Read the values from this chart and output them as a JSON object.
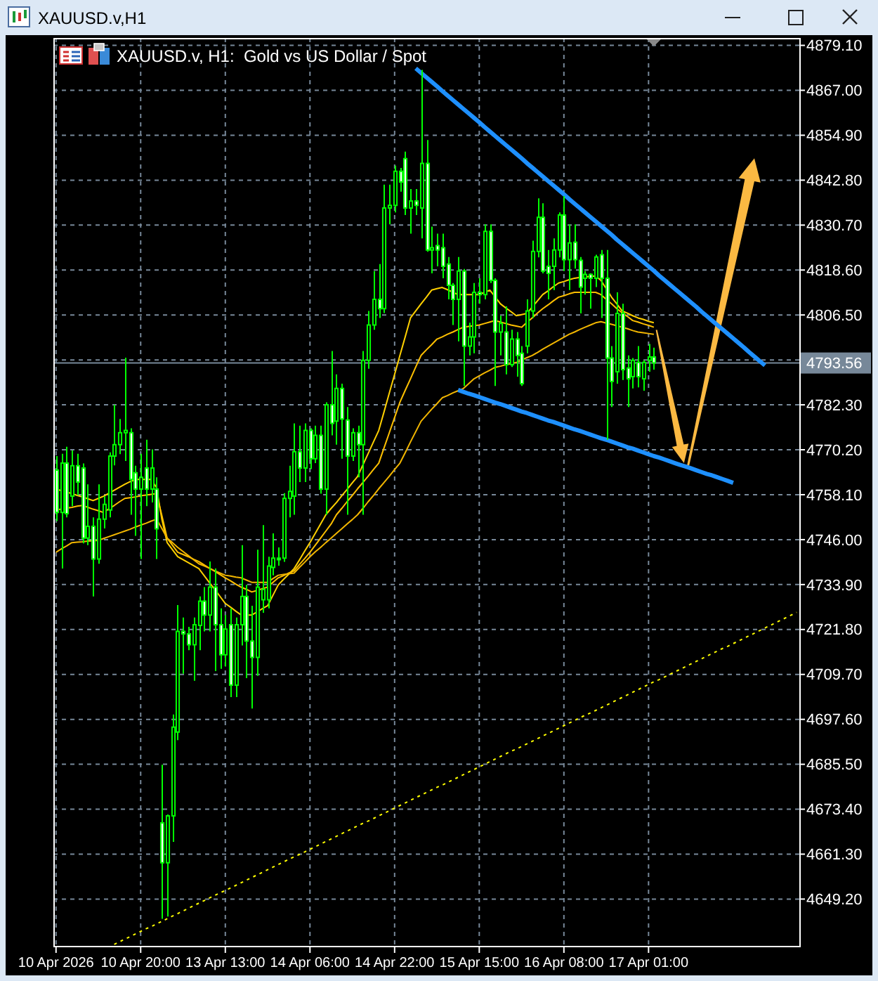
{
  "chart_data": {
    "type": "candlestick",
    "title": "XAUUSD.v,H1",
    "subtitle": "XAUUSD.v, H1:  Gold vs US Dollar / Spot",
    "color": "#00ff00",
    "categories": [
      "10 Apr 2026",
      null,
      null,
      null,
      null,
      null,
      null,
      null,
      null,
      null,
      null,
      null,
      null,
      null,
      null,
      null,
      "10 Apr 20:00",
      null,
      null,
      null,
      null,
      null,
      null,
      null,
      null,
      null,
      null,
      null,
      null,
      null,
      null,
      null,
      "13 Apr 13:00",
      null,
      null,
      null,
      null,
      null,
      null,
      null,
      null,
      null,
      null,
      null,
      null,
      null,
      null,
      null,
      "14 Apr 06:00",
      null,
      null,
      null,
      null,
      null,
      null,
      null,
      null,
      null,
      null,
      null,
      null,
      null,
      null,
      null,
      "14 Apr 22:00",
      null,
      null,
      null,
      null,
      null,
      null,
      null,
      null,
      null,
      null,
      null,
      null,
      null,
      null,
      null,
      "15 Apr 15:00",
      null,
      null,
      null,
      null,
      null,
      null,
      null,
      null,
      null,
      null,
      null,
      null,
      null,
      null,
      null,
      "16 Apr 08:00",
      null,
      null,
      null,
      null,
      null,
      null,
      null,
      null,
      null,
      null,
      null,
      null,
      null,
      null,
      null,
      "17 Apr 01:00",
      null,
      null,
      null,
      null,
      null,
      null,
      null,
      null,
      null,
      null,
      null,
      null,
      null,
      null,
      null,
      null,
      null,
      null,
      null,
      null,
      null,
      null,
      null,
      null,
      null,
      null,
      null,
      null
    ],
    "ohlc": [
      [
        4764.7,
        4768.5,
        4751.0,
        4753.3
      ],
      [
        4753.3,
        4769.1,
        4738.2,
        4766.6
      ],
      [
        4766.6,
        4771.0,
        4752.0,
        4753.0
      ],
      [
        4757.7,
        4770.0,
        4755.0,
        4765.9
      ],
      [
        4765.9,
        4769.1,
        4758.0,
        4761.5
      ],
      [
        4765.3,
        4766.5,
        4745.0,
        4746.4
      ],
      [
        4746.4,
        4760.9,
        4744.5,
        4749.6
      ],
      [
        4749.6,
        4752.0,
        4730.7,
        4740.8
      ],
      [
        4740.8,
        4760.9,
        4739.5,
        4751.5
      ],
      [
        4751.5,
        4757.7,
        4749.0,
        4755.5
      ],
      [
        4754.0,
        4769.5,
        4752.0,
        4768.5
      ],
      [
        4768.5,
        4782.3,
        4766.0,
        4771.6
      ],
      [
        4771.6,
        4778.5,
        4769.0,
        4774.8
      ],
      [
        4774.8,
        4795.0,
        4767.2,
        4775.4
      ],
      [
        4774.8,
        4776.0,
        4752.7,
        4762.2
      ],
      [
        4764.0,
        4765.9,
        4747.0,
        4759.6
      ],
      [
        4759.6,
        4769.1,
        4740.8,
        4762.8
      ],
      [
        4765.3,
        4772.9,
        4755.0,
        4759.6
      ],
      [
        4759.6,
        4770.3,
        4756.0,
        4765.3
      ],
      [
        4759.6,
        4762.8,
        4740.8,
        4748.9
      ],
      [
        4669.7,
        4685.4,
        4643.9,
        4659.0
      ],
      [
        4659.0,
        4672.0,
        4644.5,
        4671.6
      ],
      [
        4671.6,
        4698.9,
        4664.6,
        4695.5
      ],
      [
        4694.2,
        4728.4,
        4692.0,
        4721.3
      ],
      [
        4721.3,
        4725.0,
        4709.9,
        4720.6
      ],
      [
        4720.6,
        4722.5,
        4716.2,
        4717.7
      ],
      [
        4717.7,
        4725.0,
        4708.0,
        4723.1
      ],
      [
        4722.9,
        4730.7,
        4716.2,
        4729.4
      ],
      [
        4729.4,
        4733.2,
        4721.3,
        4725.7
      ],
      [
        4725.7,
        4740.1,
        4721.3,
        4733.2
      ],
      [
        4733.2,
        4738.2,
        4710.6,
        4723.1
      ],
      [
        4723.1,
        4727.5,
        4711.2,
        4715.0
      ],
      [
        4715.0,
        4725.7,
        4711.8,
        4721.9
      ],
      [
        4723.1,
        4727.5,
        4703.6,
        4706.8
      ],
      [
        4706.8,
        4725.0,
        4703.6,
        4723.1
      ],
      [
        4723.1,
        4744.5,
        4717.5,
        4730.7
      ],
      [
        4730.7,
        4733.8,
        4708.7,
        4718.7
      ],
      [
        4718.7,
        4728.2,
        4700.5,
        4714.3
      ],
      [
        4714.3,
        4743.3,
        4709.3,
        4733.2
      ],
      [
        4729.8,
        4749.9,
        4726.3,
        4732.6
      ],
      [
        4729.8,
        4741.4,
        4727.5,
        4738.9
      ],
      [
        4738.5,
        4747.7,
        4736.4,
        4741.0
      ],
      [
        4741.0,
        4743.9,
        4739.0,
        4740.6
      ],
      [
        4741.0,
        4758.5,
        4740.0,
        4757.1
      ],
      [
        4757.1,
        4765.9,
        4752.0,
        4759.0
      ],
      [
        4757.7,
        4777.3,
        4752.7,
        4769.7
      ],
      [
        4769.7,
        4776.7,
        4761.5,
        4765.3
      ],
      [
        4765.3,
        4777.3,
        4761.5,
        4775.4
      ],
      [
        4775.4,
        4776.0,
        4765.0,
        4767.8
      ],
      [
        4767.8,
        4776.7,
        4766.6,
        4774.1
      ],
      [
        4774.1,
        4776.7,
        4758.4,
        4759.6
      ],
      [
        4759.6,
        4783.0,
        4752.7,
        4782.3
      ],
      [
        4782.3,
        4796.8,
        4774.1,
        4777.3
      ],
      [
        4777.9,
        4790.5,
        4771.6,
        4786.7
      ],
      [
        4786.7,
        4788.0,
        4767.8,
        4778.5
      ],
      [
        4778.2,
        4781.7,
        4752.7,
        4768.5
      ],
      [
        4768.5,
        4776.0,
        4767.2,
        4774.8
      ],
      [
        4774.8,
        4776.7,
        4762.8,
        4771.6
      ],
      [
        4771.6,
        4796.8,
        4752.7,
        4794.3
      ],
      [
        4794.3,
        4807.6,
        4792.0,
        4803.8
      ],
      [
        4803.8,
        4818.3,
        4802.5,
        4810.7
      ],
      [
        4810.7,
        4820.2,
        4805.7,
        4808.2
      ],
      [
        4808.2,
        4841.6,
        4807.0,
        4835.3
      ],
      [
        4835.3,
        4841.6,
        4830.9,
        4836.0
      ],
      [
        4836.0,
        4846.7,
        4834.1,
        4845.2
      ],
      [
        4845.2,
        4846.1,
        4839.7,
        4842.3
      ],
      [
        4848.6,
        4850.5,
        4833.4,
        4835.3
      ],
      [
        4835.3,
        4840.4,
        4828.4,
        4837.2
      ],
      [
        4837.2,
        4840.4,
        4833.4,
        4836.0
      ],
      [
        4835.3,
        4872.5,
        4827.1,
        4847.3
      ],
      [
        4847.3,
        4853.6,
        4823.5,
        4824.0
      ],
      [
        4824.0,
        4830.3,
        4817.7,
        4824.6
      ],
      [
        4825.2,
        4828.4,
        4819.6,
        4824.0
      ],
      [
        4824.6,
        4828.4,
        4816.4,
        4819.6
      ],
      [
        4820.2,
        4822.1,
        4810.7,
        4814.5
      ],
      [
        4814.5,
        4815.1,
        4803.8,
        4810.7
      ],
      [
        4810.7,
        4822.1,
        4799.4,
        4818.3
      ],
      [
        4818.3,
        4818.9,
        4787.4,
        4798.1
      ],
      [
        4798.1,
        4804.4,
        4795.6,
        4800.6
      ],
      [
        4800.6,
        4815.1,
        4796.2,
        4812.6
      ],
      [
        4812.6,
        4816.4,
        4809.5,
        4812.0
      ],
      [
        4812.0,
        4830.9,
        4810.7,
        4829.0
      ],
      [
        4829.0,
        4830.9,
        4815.1,
        4815.8
      ],
      [
        4815.8,
        4816.4,
        4787.4,
        4801.9
      ],
      [
        4801.9,
        4806.3,
        4795.6,
        4804.2
      ],
      [
        4801.9,
        4808.8,
        4790.5,
        4793.1
      ],
      [
        4793.1,
        4802.5,
        4792.5,
        4800.0
      ],
      [
        4800.0,
        4801.9,
        4789.9,
        4795.6
      ],
      [
        4796.2,
        4798.1,
        4787.4,
        4788.0
      ],
      [
        4798.1,
        4810.7,
        4796.2,
        4807.6
      ],
      [
        4807.6,
        4826.5,
        4805.7,
        4823.6
      ],
      [
        4823.6,
        4837.9,
        4822.0,
        4832.8
      ],
      [
        4832.8,
        4836.6,
        4817.7,
        4818.3
      ],
      [
        4819.6,
        4824.0,
        4810.7,
        4817.7
      ],
      [
        4819.6,
        4827.1,
        4813.2,
        4824.0
      ],
      [
        4824.0,
        4834.1,
        4822.0,
        4833.4
      ],
      [
        4833.4,
        4838.5,
        4818.3,
        4821.4
      ],
      [
        4821.4,
        4830.9,
        4813.2,
        4825.9
      ],
      [
        4826.1,
        4830.9,
        4819.0,
        4821.4
      ],
      [
        4821.2,
        4822.1,
        4806.9,
        4814.0
      ],
      [
        4816.4,
        4818.3,
        4812.0,
        4817.4
      ],
      [
        4817.4,
        4817.7,
        4808.2,
        4816.4
      ],
      [
        4816.4,
        4822.7,
        4814.0,
        4822.1
      ],
      [
        4822.7,
        4824.0,
        4805.7,
        4816.4
      ],
      [
        4816.4,
        4824.0,
        4772.9,
        4794.9
      ],
      [
        4794.9,
        4798.1,
        4781.7,
        4788.6
      ],
      [
        4791.2,
        4812.6,
        4788.0,
        4806.9
      ],
      [
        4806.9,
        4809.5,
        4789.0,
        4791.8
      ],
      [
        4792.2,
        4795.6,
        4781.7,
        4789.3
      ],
      [
        4789.9,
        4794.9,
        4786.7,
        4794.3
      ],
      [
        4793.7,
        4798.1,
        4787.0,
        4789.9
      ],
      [
        4789.3,
        4794.3,
        4786.1,
        4793.7
      ],
      [
        4794.3,
        4798.7,
        4791.2,
        4795.2
      ],
      [
        4795.2,
        4797.7,
        4791.8,
        4793.56
      ],
      null,
      null,
      null,
      null,
      null,
      null,
      null,
      null,
      null,
      null,
      null,
      null,
      null,
      null,
      null,
      null,
      null,
      null,
      null,
      null,
      null,
      null,
      null,
      null,
      null,
      null,
      null
    ],
    "colors": [
      "#ffffff",
      "#000000",
      "#ffffff",
      "#000000",
      "#ffffff",
      "#ffffff",
      "#000000",
      "#ffffff",
      "#000000",
      "#000000",
      "#000000",
      "#000000",
      "#000000",
      "#000000",
      "#ffffff",
      "#ffffff",
      "#000000",
      "#ffffff",
      "#000000",
      "#ffffff",
      "#ffffff",
      "#000000",
      "#000000",
      "#000000",
      "#ffffff",
      "#ffffff",
      "#000000",
      "#000000",
      "#ffffff",
      "#000000",
      "#ffffff",
      "#ffffff",
      "#000000",
      "#ffffff",
      "#000000",
      "#000000",
      "#ffffff",
      "#ffffff",
      "#000000",
      "#000000",
      "#000000",
      "#000000",
      "#ffffff",
      "#000000",
      "#000000",
      "#000000",
      "#ffffff",
      "#000000",
      "#ffffff",
      "#000000",
      "#ffffff",
      "#000000",
      "#ffffff",
      "#000000",
      "#ffffff",
      "#ffffff",
      "#000000",
      "#ffffff",
      "#000000",
      "#000000",
      "#000000",
      "#ffffff",
      "#000000",
      "#000000",
      "#000000",
      "#ffffff",
      "#ffffff",
      "#000000",
      "#ffffff",
      "#000000",
      "#ffffff",
      "#000000",
      "#ffffff",
      "#ffffff",
      "#ffffff",
      "#ffffff",
      "#000000",
      "#ffffff",
      "#000000",
      "#000000",
      "#ffffff",
      "#000000",
      "#ffffff",
      "#ffffff",
      "#000000",
      "#ffffff",
      "#000000",
      "#ffffff",
      "#ffffff",
      "#000000",
      "#000000",
      "#000000",
      "#ffffff",
      "#ffffff",
      "#000000",
      "#000000",
      "#ffffff",
      "#000000",
      "#ffffff",
      "#ffffff",
      "#000000",
      "#ffffff",
      "#000000",
      "#ffffff",
      "#ffffff",
      "#ffffff",
      "#000000",
      "#ffffff",
      "#ffffff",
      "#000000",
      "#ffffff",
      "#000000",
      "#000000",
      "#ffffff",
      null,
      null,
      null,
      null,
      null,
      null,
      null,
      null,
      null,
      null,
      null,
      null,
      null,
      null,
      null,
      null,
      null,
      null,
      null,
      null,
      null,
      null,
      null,
      null,
      null,
      null,
      null
    ],
    "series": [
      {
        "type": "line",
        "color": "#ffd000",
        "values": [
          4759.6,
          4759.2,
          4758.8,
          4758.4,
          4757.9,
          4757.5,
          4757.0,
          4756.5,
          4757.1,
          4757.7,
          4758.5,
          4759.3,
          4760.1,
          4760.9,
          4761.6,
          4762.2,
          4762.2,
          4762.2,
          4762.2,
          4760.0,
          4751.5,
          4745.2,
          4743.3,
          4741.4,
          4740.6,
          4739.8,
          4739.0,
          4738.2,
          4736.3,
          4734.4,
          4732.6,
          4730.7,
          4728.8,
          4727.8,
          4726.7,
          4725.7,
          4725.7,
          4725.7,
          4726.5,
          4727.4,
          4728.2,
          4731.0,
          4733.8,
          4735.3,
          4736.7,
          4738.2,
          4740.5,
          4742.9,
          4745.2,
          4747.7,
          4750.2,
          4752.7,
          4754.4,
          4756.0,
          4757.8,
          4759.5,
          4761.3,
          4763.0,
          4766.1,
          4769.2,
          4772.3,
          4775.4,
          4780.4,
          4785.5,
          4790.5,
          4795.6,
          4800.6,
          4805.7,
          4807.6,
          4809.5,
          4811.3,
          4813.2,
          4813.6,
          4813.9,
          4813.3,
          4812.6,
          4812.0,
          4812.0,
          4812.0,
          4812.0,
          4812.0,
          4812.6,
          4813.2,
          4811.4,
          4809.5,
          4808.4,
          4807.4,
          4806.3,
          4806.6,
          4806.9,
          4808.6,
          4810.3,
          4812.0,
          4813.0,
          4814.1,
          4815.1,
          4815.5,
          4816.0,
          4816.4,
          4816.6,
          4816.7,
          4816.9,
          4817.0,
          4815.8,
          4813.6,
          4811.3,
          4809.5,
          4807.6,
          4807.0,
          4806.3,
          4805.7,
          4805.3,
          4804.8,
          4804.4,
          null,
          null,
          null,
          null,
          null,
          null,
          null,
          null,
          null,
          null,
          null,
          null,
          null,
          null,
          null,
          null,
          null,
          null,
          null,
          null,
          null,
          null,
          null,
          null,
          null,
          null,
          null
        ]
      },
      {
        "type": "line",
        "color": "#ffc000",
        "values": [
          4754.0,
          4754.2,
          4754.5,
          4754.7,
          4755.0,
          4755.2,
          4754.7,
          4754.2,
          4753.8,
          4753.3,
          4754.3,
          4755.2,
          4756.2,
          4757.1,
          4757.3,
          4757.5,
          4757.8,
          4758.0,
          4758.2,
          4758.4,
          4752.5,
          4746.4,
          4744.5,
          4742.6,
          4742.0,
          4741.4,
          4740.7,
          4740.1,
          4739.2,
          4738.3,
          4737.5,
          4736.6,
          4735.7,
          4734.9,
          4734.0,
          4733.2,
          4732.6,
          4731.9,
          4732.3,
          4732.8,
          4733.2,
          4734.5,
          4735.7,
          4736.3,
          4737.0,
          4737.6,
          4739.3,
          4740.9,
          4742.6,
          4744.5,
          4746.4,
          4748.3,
          4750.2,
          4752.7,
          4754.4,
          4756.2,
          4757.9,
          4759.7,
          4761.4,
          4763.1,
          4764.9,
          4766.6,
          4770.7,
          4774.8,
          4778.9,
          4783.0,
          4786.2,
          4789.3,
          4792.5,
          4795.6,
          4797.1,
          4798.5,
          4800.0,
          4800.6,
          4801.3,
          4801.9,
          4802.6,
          4803.2,
          4803.4,
          4803.6,
          4803.8,
          4804.2,
          4804.6,
          4805.0,
          4804.6,
          4804.2,
          4803.8,
          4803.5,
          4803.2,
          4804.5,
          4805.7,
          4807.0,
          4808.2,
          4809.2,
          4810.3,
          4811.3,
          4811.7,
          4812.2,
          4812.6,
          4812.6,
          4812.6,
          4812.6,
          4812.6,
          4812.0,
          4810.7,
          4809.5,
          4808.2,
          4807.1,
          4806.1,
          4805.0,
          4804.6,
          4804.1,
          4803.7,
          4803.2,
          null,
          null,
          null,
          null,
          null,
          null,
          null,
          null,
          null,
          null,
          null,
          null,
          null,
          null,
          null,
          null,
          null,
          null,
          null,
          null,
          null,
          null,
          null,
          null,
          null,
          null,
          null
        ]
      },
      {
        "type": "line",
        "color": "#f2b600",
        "values": [
          4742.6,
          4743.5,
          4744.3,
          4745.2,
          4745.3,
          4745.4,
          4745.6,
          4745.7,
          4745.8,
          4746.3,
          4746.8,
          4747.3,
          4747.8,
          4748.3,
          4748.8,
          4749.4,
          4749.9,
          4750.4,
          4751.0,
          4751.5,
          4749.0,
          4746.4,
          4745.2,
          4743.9,
          4742.8,
          4741.7,
          4740.6,
          4739.5,
          4738.9,
          4738.3,
          4737.6,
          4737.0,
          4736.4,
          4736.2,
          4735.9,
          4735.7,
          4735.1,
          4734.5,
          4734.5,
          4734.5,
          4734.5,
          4735.5,
          4736.4,
          4736.6,
          4736.8,
          4737.0,
          4738.5,
          4739.9,
          4741.4,
          4742.7,
          4743.9,
          4745.2,
          4746.4,
          4747.7,
          4748.9,
          4750.2,
          4751.4,
          4752.7,
          4754.4,
          4756.2,
          4757.9,
          4759.7,
          4761.4,
          4763.1,
          4764.9,
          4766.6,
          4769.4,
          4772.3,
          4775.1,
          4777.9,
          4779.5,
          4781.1,
          4782.6,
          4784.2,
          4784.8,
          4785.5,
          4786.1,
          4786.7,
          4788.0,
          4789.3,
          4790.1,
          4790.9,
          4791.6,
          4792.4,
          4792.7,
          4793.1,
          4793.4,
          4793.7,
          4794.3,
          4795.0,
          4795.6,
          4796.4,
          4797.3,
          4798.1,
          4798.9,
          4799.7,
          4800.5,
          4801.3,
          4801.9,
          4802.6,
          4803.2,
          4803.8,
          4804.4,
          4804.7,
          4804.3,
          4804.0,
          4803.6,
          4803.2,
          4802.8,
          4802.3,
          4801.9,
          4801.7,
          4801.5,
          4801.3,
          null,
          null,
          null,
          null,
          null,
          null,
          null,
          null,
          null,
          null,
          null,
          null,
          null,
          null,
          null,
          null,
          null,
          null,
          null,
          null,
          null,
          null,
          null,
          null,
          null,
          null,
          null
        ]
      },
      {
        "type": "line",
        "color": "#1e90ff",
        "values": [
          null,
          null,
          null,
          null,
          null,
          null,
          null,
          null,
          null,
          null,
          null,
          null,
          null,
          null,
          null,
          null,
          null,
          null,
          null,
          null,
          null,
          null,
          null,
          null,
          null,
          null,
          null,
          null,
          null,
          null,
          null,
          null,
          null,
          null,
          null,
          null,
          null,
          null,
          null,
          null,
          null,
          null,
          null,
          null,
          null,
          null,
          null,
          null,
          null,
          null,
          null,
          null,
          null,
          null,
          null,
          null,
          null,
          null,
          null,
          null,
          null,
          null,
          null,
          null,
          null,
          null,
          null,
          null,
          4872.9,
          4871.7,
          4870.5,
          4869.3,
          4868.1,
          4866.8,
          4865.6,
          4864.4,
          4863.2,
          4862.0,
          4860.8,
          4859.6,
          4858.4,
          4857.1,
          4855.9,
          4854.7,
          4853.5,
          4852.3,
          4851.1,
          4849.9,
          4848.7,
          4847.4,
          4846.2,
          4845.0,
          4843.8,
          4842.6,
          4841.4,
          4840.2,
          4839.0,
          4837.7,
          4836.5,
          4835.3,
          4834.1,
          4832.9,
          4831.7,
          4830.5,
          4829.3,
          4828.1,
          4826.8,
          4825.6,
          4824.4,
          4823.2,
          4822.0,
          4820.8,
          4819.6,
          4818.4,
          4817.1,
          4815.9,
          4814.7,
          4813.5,
          4812.3,
          4811.1,
          4809.9,
          4808.7,
          4807.4,
          4806.2,
          4805.0,
          4803.8,
          4802.6,
          4801.4,
          4800.2,
          4799.0,
          4797.8,
          4796.5,
          4795.3,
          4794.1,
          4792.9,
          null,
          null,
          null,
          null,
          null,
          null
        ]
      },
      {
        "type": "line",
        "color": "#1e90ff",
        "values": [
          null,
          null,
          null,
          null,
          null,
          null,
          null,
          null,
          null,
          null,
          null,
          null,
          null,
          null,
          null,
          null,
          null,
          null,
          null,
          null,
          null,
          null,
          null,
          null,
          null,
          null,
          null,
          null,
          null,
          null,
          null,
          null,
          null,
          null,
          null,
          null,
          null,
          null,
          null,
          null,
          null,
          null,
          null,
          null,
          null,
          null,
          null,
          null,
          null,
          null,
          null,
          null,
          null,
          null,
          null,
          null,
          null,
          null,
          null,
          null,
          null,
          null,
          null,
          null,
          null,
          null,
          null,
          null,
          null,
          null,
          null,
          null,
          null,
          null,
          null,
          null,
          4786.3,
          4785.8,
          4785.3,
          4784.9,
          4784.4,
          4783.9,
          4783.4,
          4782.9,
          4782.5,
          4782.0,
          4781.5,
          4781.0,
          4780.5,
          4780.1,
          4779.6,
          4779.1,
          4778.6,
          4778.1,
          4777.7,
          4777.2,
          4776.7,
          4776.2,
          4775.7,
          4775.3,
          4774.8,
          4774.3,
          4773.8,
          4773.3,
          4772.9,
          4772.4,
          4771.9,
          4771.4,
          4770.9,
          4770.5,
          4770.0,
          4769.5,
          4769.0,
          4768.5,
          4768.1,
          4767.6,
          4767.1,
          4766.6,
          4766.1,
          4765.7,
          4765.2,
          4764.7,
          4764.2,
          4763.7,
          4763.3,
          4762.8,
          4762.3,
          4761.8,
          4761.3,
          null,
          null,
          null,
          null,
          null,
          null,
          null,
          null,
          null,
          null,
          null,
          null
        ]
      },
      {
        "type": "line",
        "color": "#ffff00",
        "line_style": "dotted",
        "values": [
          null,
          null,
          null,
          null,
          null,
          null,
          null,
          null,
          null,
          null,
          null,
          4637.0,
          4637.7,
          4638.4,
          4639.1,
          4639.8,
          4640.5,
          4641.2,
          4641.8,
          4642.5,
          4643.2,
          4643.9,
          4644.6,
          4645.3,
          4646.0,
          4646.7,
          4647.4,
          4648.1,
          4648.8,
          4649.5,
          4650.2,
          4650.9,
          4651.5,
          4652.2,
          4652.9,
          4653.6,
          4654.3,
          4655.0,
          4655.7,
          4656.4,
          4657.1,
          4657.8,
          4658.5,
          4659.2,
          4659.9,
          4660.6,
          4661.2,
          4661.9,
          4662.6,
          4663.3,
          4664.0,
          4664.7,
          4665.4,
          4666.1,
          4666.8,
          4667.5,
          4668.2,
          4668.9,
          4669.6,
          4670.2,
          4670.9,
          4671.6,
          4672.3,
          4673.0,
          4673.7,
          4674.4,
          4675.1,
          4675.8,
          4676.5,
          4677.2,
          4677.9,
          4678.6,
          4679.3,
          4679.9,
          4680.6,
          4681.3,
          4682.0,
          4682.7,
          4683.4,
          4684.1,
          4684.8,
          4685.5,
          4686.2,
          4686.9,
          4687.6,
          4688.3,
          4689.0,
          4689.6,
          4690.3,
          4691.0,
          4691.7,
          4692.4,
          4693.1,
          4693.8,
          4694.5,
          4695.2,
          4695.9,
          4696.6,
          4697.3,
          4698.0,
          4698.7,
          4699.3,
          4700.0,
          4700.7,
          4701.4,
          4702.1,
          4702.8,
          4703.5,
          4704.2,
          4704.9,
          4705.6,
          4706.3,
          4707.0,
          4707.7,
          4708.3,
          4709.0,
          4709.7,
          4710.4,
          4711.1,
          4711.8,
          4712.5,
          4713.2,
          4713.9,
          4714.6,
          4715.3,
          4716.0,
          4716.7,
          4717.3,
          4718.0,
          4718.7,
          4719.4,
          4720.1,
          4720.8,
          4721.5,
          4722.2,
          4722.9,
          4723.6,
          4724.3,
          4725.0,
          4725.7,
          4726.4
        ]
      }
    ],
    "ylim": [
      4636.6,
      4881.1
    ],
    "yticks": [
      {
        "value": 4879.1,
        "label": "4879.10"
      },
      {
        "value": 4867,
        "label": "4867.00"
      },
      {
        "value": 4854.9,
        "label": "4854.90"
      },
      {
        "value": 4842.8,
        "label": "4842.80"
      },
      {
        "value": 4830.7,
        "label": "4830.70"
      },
      {
        "value": 4818.6,
        "label": "4818.60"
      },
      {
        "value": 4806.5,
        "label": "4806.50"
      },
      {
        "value": 4794.4,
        "label": null
      },
      {
        "value": 4782.3,
        "label": "4782.30"
      },
      {
        "value": 4770.2,
        "label": "4770.20"
      },
      {
        "value": 4758.1,
        "label": "4758.10"
      },
      {
        "value": 4746,
        "label": "4746.00"
      },
      {
        "value": 4733.9,
        "label": "4733.90"
      },
      {
        "value": 4721.8,
        "label": "4721.80"
      },
      {
        "value": 4709.7,
        "label": "4709.70"
      },
      {
        "value": 4697.6,
        "label": "4697.60"
      },
      {
        "value": 4685.5,
        "label": "4685.50"
      },
      {
        "value": 4673.4,
        "label": "4673.40"
      },
      {
        "value": 4661.3,
        "label": "4661.30"
      },
      {
        "value": 4649.2,
        "label": "4649.20"
      }
    ],
    "grid": true,
    "ref_lines": [
      {
        "axis": "y",
        "value": 4793.56,
        "label": "4793.56",
        "color": "#778899"
      }
    ]
  }
}
